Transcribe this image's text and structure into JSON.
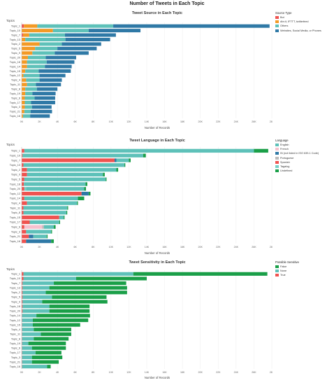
{
  "title": "Number of Tweets in Each Topic",
  "charts": [
    {
      "title": "Tweet Source in Each Topic",
      "ylabel": "Topics",
      "xlabel": "Number of Records",
      "legend_title": "Source Type",
      "legend": [
        {
          "name": "Bot",
          "color": "#ef5350"
        },
        {
          "name": "dlvr.it, IFTTT, twitterfeed",
          "color": "#f39a26"
        },
        {
          "name": "Others",
          "color": "#5ec1b9"
        },
        {
          "name": "Websites, Social Media, or Phones",
          "color": "#2f79a6"
        }
      ]
    },
    {
      "title": "Tweet Language in Each Topic",
      "ylabel": "Topics",
      "xlabel": "Number of Records",
      "legend_title": "Language",
      "legend": [
        {
          "name": "English",
          "color": "#5ec1b9"
        },
        {
          "name": "French",
          "color": "#f6c1ce"
        },
        {
          "name": "IN (not listed in ISO 639-1 Code)",
          "color": "#2f79a6"
        },
        {
          "name": "Portuguese",
          "color": "#bbbbbb"
        },
        {
          "name": "Spanish",
          "color": "#ef5350"
        },
        {
          "name": "Tagalog",
          "color": "#77cfc7"
        },
        {
          "name": "Undefined",
          "color": "#1a9f48"
        }
      ]
    },
    {
      "title": "Tweet Sensitivity in Each Topic",
      "ylabel": "Topics",
      "xlabel": "Number of Records",
      "legend_title": "Possible Sensitive",
      "legend": [
        {
          "name": "False",
          "color": "#1a9f48"
        },
        {
          "name": "None",
          "color": "#5ec1b9"
        },
        {
          "name": "True",
          "color": "#ef5350"
        }
      ]
    }
  ],
  "chart_data": [
    {
      "type": "bar",
      "orientation": "horizontal",
      "stacked": true,
      "title": "Tweet Source in Each Topic",
      "xlabel": "Number of Records",
      "ylabel": "Topics",
      "xlim": [
        0,
        28000
      ],
      "xticks": [
        "0K",
        "2K",
        "4K",
        "6K",
        "8K",
        "10K",
        "12K",
        "14K",
        "16K",
        "18K",
        "20K",
        "22K",
        "24K",
        "26K",
        "28K"
      ],
      "categories": [
        "Topic_1",
        "Topic_10",
        "Topic_7",
        "Topic_13",
        "Topic_2",
        "Topic_5",
        "Topic_9",
        "Topic_20",
        "Topic_18",
        "Topic_14",
        "Topic_15",
        "Topic_12",
        "Topic_4",
        "Topic_11",
        "Topic_8",
        "Topic_19",
        "Topic_6",
        "Topic_17",
        "Topic_3",
        "Topic_21",
        "Topic_16"
      ],
      "series": [
        {
          "name": "Bot",
          "color": "#ef5350",
          "values": [
            250,
            0,
            150,
            0,
            0,
            0,
            0,
            0,
            0,
            0,
            0,
            0,
            0,
            0,
            0,
            0,
            0,
            0,
            0,
            0,
            0
          ]
        },
        {
          "name": "dlvr.it, IFTTT, twitterfeed",
          "color": "#f39a26",
          "values": [
            1500,
            3500,
            700,
            400,
            2000,
            1500,
            1200,
            700,
            600,
            600,
            400,
            200,
            500,
            600,
            400,
            400,
            350,
            350,
            350,
            300,
            150
          ]
        },
        {
          "name": "Others",
          "color": "#5ec1b9",
          "values": [
            8500,
            4000,
            4000,
            4500,
            2500,
            2500,
            2500,
            2000,
            2200,
            2000,
            1500,
            1800,
            1500,
            1000,
            1300,
            800,
            1100,
            700,
            800,
            700,
            800
          ]
        },
        {
          "name": "Websites, Social Media, or Phones",
          "color": "#2f79a6",
          "values": [
            17500,
            5800,
            5700,
            5000,
            4400,
            4400,
            3800,
            3400,
            3100,
            3000,
            3600,
            2900,
            2500,
            2800,
            2300,
            2600,
            2300,
            2700,
            2200,
            2400,
            2200
          ]
        }
      ]
    },
    {
      "type": "bar",
      "orientation": "horizontal",
      "stacked": true,
      "title": "Tweet Language in Each Topic",
      "xlabel": "Number of Records",
      "ylabel": "Topics",
      "xlim": [
        0,
        28000
      ],
      "xticks": [
        "0K",
        "2K",
        "4K",
        "6K",
        "8K",
        "10K",
        "12K",
        "14K",
        "16K",
        "18K",
        "20K",
        "22K",
        "24K",
        "26K",
        "28K"
      ],
      "categories": [
        "Topic_1",
        "Topic_10",
        "Topic_7",
        "Topic_13",
        "Topic_2",
        "Topic_9",
        "Topic_5",
        "Topic_18",
        "Topic_20",
        "Topic_12",
        "Topic_14",
        "Topic_4",
        "Topic_11",
        "Topic_8",
        "Topic_15",
        "Topic_17",
        "Topic_6",
        "Topic_3",
        "Topic_21",
        "Topic_16"
      ],
      "series": [
        {
          "name": "Spanish",
          "color": "#ef5350",
          "values": [
            300,
            100,
            10400,
            200,
            600,
            600,
            300,
            250,
            300,
            6700,
            300,
            600,
            200,
            200,
            4200,
            900,
            300,
            500,
            800,
            500
          ]
        },
        {
          "name": "IN (not listed in ISO 639-1 Code)",
          "color": "#2f79a6",
          "values": [
            0,
            0,
            200,
            0,
            0,
            0,
            0,
            0,
            0,
            800,
            0,
            0,
            0,
            0,
            0,
            0,
            0,
            0,
            500,
            2800
          ]
        },
        {
          "name": "French",
          "color": "#f6c1ce",
          "values": [
            0,
            0,
            0,
            0,
            0,
            0,
            0,
            0,
            0,
            0,
            0,
            0,
            0,
            0,
            0,
            0,
            2000,
            0,
            0,
            0
          ]
        },
        {
          "name": "Portuguese",
          "color": "#bbbbbb",
          "values": [
            0,
            0,
            0,
            0,
            0,
            0,
            0,
            0,
            0,
            0,
            0,
            0,
            0,
            0,
            0,
            0,
            200,
            0,
            0,
            0
          ]
        },
        {
          "name": "Tagalog",
          "color": "#77cfc7",
          "values": [
            0,
            0,
            0,
            0,
            0,
            0,
            0,
            0,
            200,
            0,
            0,
            0,
            0,
            0,
            0,
            0,
            0,
            0,
            0,
            0
          ]
        },
        {
          "name": "English",
          "color": "#5ec1b9",
          "values": [
            25700,
            13500,
            1400,
            11300,
            10000,
            8500,
            9100,
            6900,
            6500,
            0,
            6000,
            5600,
            4900,
            4800,
            500,
            3300,
            1100,
            2800,
            1500,
            0
          ]
        },
        {
          "name": "Undefined",
          "color": "#1a9f48",
          "values": [
            1600,
            300,
            200,
            100,
            200,
            200,
            100,
            200,
            200,
            200,
            700,
            100,
            100,
            100,
            100,
            100,
            200,
            100,
            100,
            300
          ]
        }
      ]
    },
    {
      "type": "bar",
      "orientation": "horizontal",
      "stacked": true,
      "title": "Tweet Sensitivity in Each Topic",
      "xlabel": "Number of Records",
      "ylabel": "Topics",
      "xlim": [
        0,
        28000
      ],
      "xticks": [
        "0K",
        "2K",
        "4K",
        "6K",
        "8K",
        "10K",
        "12K",
        "14K",
        "16K",
        "18K",
        "20K",
        "22K",
        "24K",
        "26K",
        "28K"
      ],
      "categories": [
        "Topic_1",
        "Topic_10",
        "Topic_7",
        "Topic_13",
        "Topic_2",
        "Topic_5",
        "Topic_9",
        "Topic_18",
        "Topic_20",
        "Topic_14",
        "Topic_12",
        "Topic_15",
        "Topic_4",
        "Topic_11",
        "Topic_8",
        "Topic_19",
        "Topic_6",
        "Topic_17",
        "Topic_3",
        "Topic_21",
        "Topic_16"
      ],
      "series": [
        {
          "name": "True",
          "color": "#ef5350",
          "values": [
            200,
            200,
            100,
            100,
            100,
            100,
            100,
            100,
            100,
            50,
            50,
            50,
            50,
            50,
            50,
            50,
            50,
            50,
            50,
            50,
            50
          ]
        },
        {
          "name": "None",
          "color": "#5ec1b9",
          "values": [
            12300,
            5900,
            3500,
            3000,
            2600,
            3300,
            2200,
            3000,
            3000,
            1600,
            1200,
            1200,
            1300,
            2100,
            1300,
            700,
            1100,
            1500,
            1100,
            1100,
            2800
          ]
        },
        {
          "name": "False",
          "color": "#1a9f48",
          "values": [
            15000,
            7900,
            8100,
            8700,
            9100,
            6100,
            7300,
            4500,
            4500,
            6000,
            6200,
            5300,
            4200,
            3400,
            3900,
            4200,
            3800,
            2900,
            3400,
            3000,
            400
          ]
        }
      ]
    }
  ]
}
